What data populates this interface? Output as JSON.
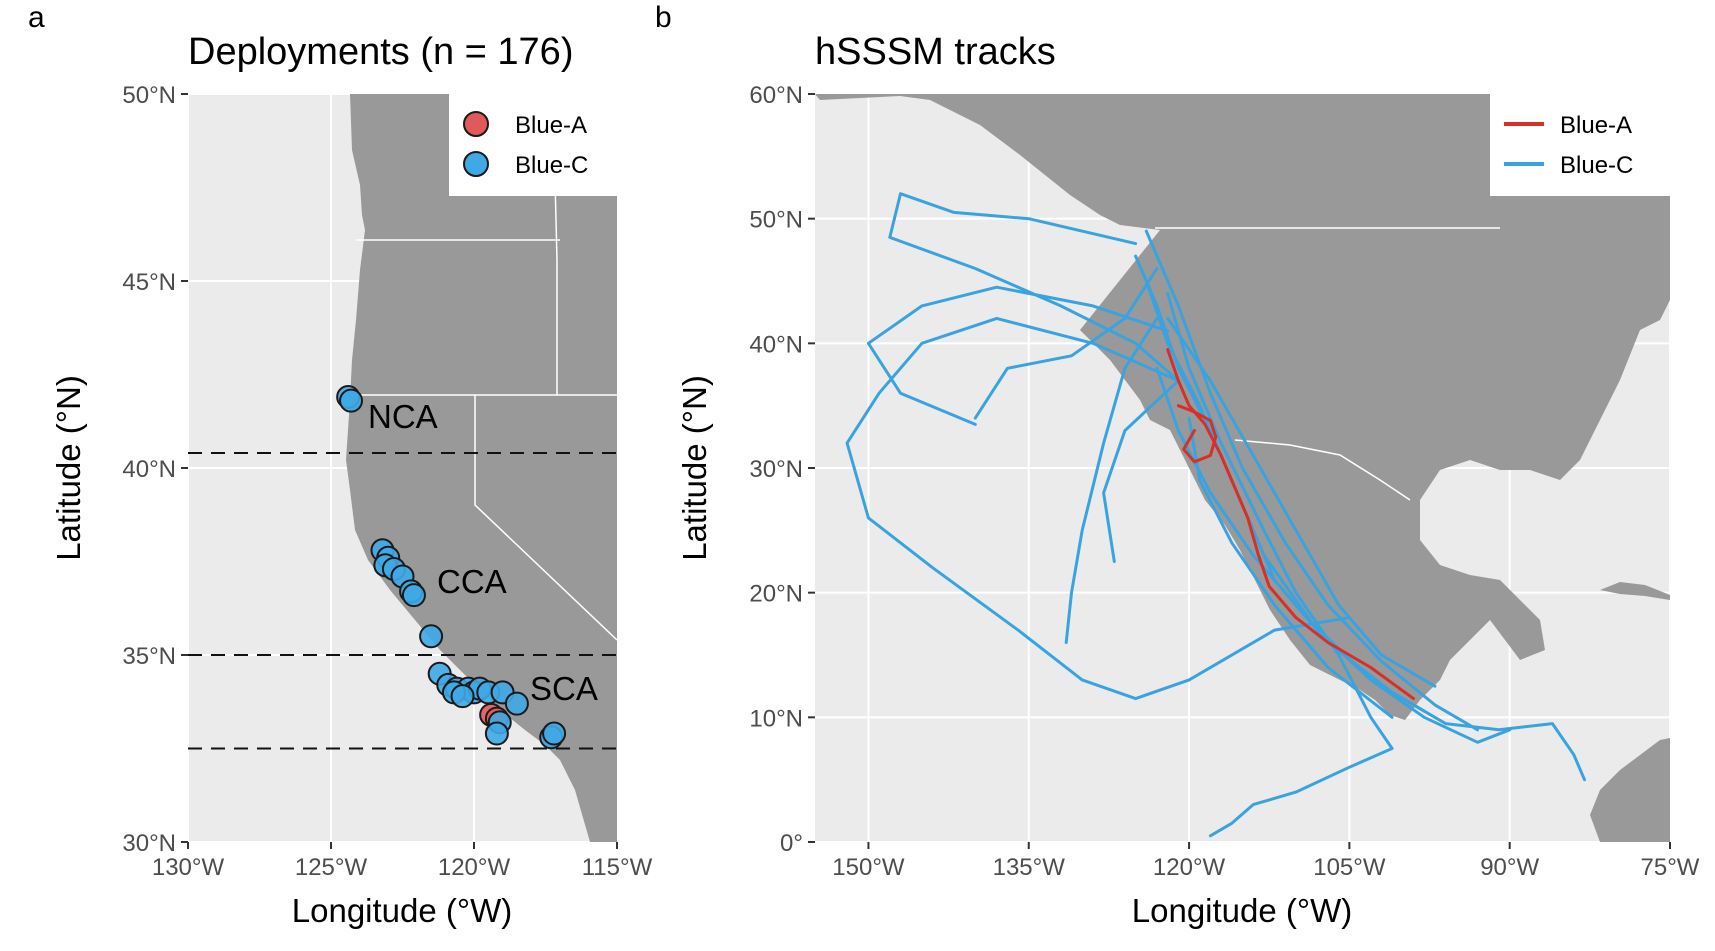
{
  "colors": {
    "ocean": "#ebebeb",
    "land": "#999999",
    "grid": "#ffffff",
    "blue_a": "#e05a5a",
    "blue_a_track": "#d73027",
    "blue_c": "#3fa9e6",
    "blue_c_track": "#39a3e0"
  },
  "panel_a": {
    "letter": "a",
    "title": "Deployments (n = 176)",
    "xlabel": "Longitude (°W)",
    "ylabel": "Latitude (°N)",
    "x_ticks": [
      "130°W",
      "125°W",
      "120°W",
      "115°W"
    ],
    "y_ticks": [
      "30°N",
      "35°N",
      "40°N",
      "45°N",
      "50°N"
    ],
    "regions": [
      "NCA",
      "CCA",
      "SCA"
    ],
    "legend": [
      "Blue-A",
      "Blue-C"
    ]
  },
  "panel_b": {
    "letter": "b",
    "title": "hSSSM tracks",
    "xlabel": "Longitude (°W)",
    "ylabel": "Latitude (°N)",
    "x_ticks": [
      "150°W",
      "135°W",
      "120°W",
      "105°W",
      "90°W",
      "75°W"
    ],
    "y_ticks": [
      "0°",
      "10°N",
      "20°N",
      "30°N",
      "40°N",
      "50°N",
      "60°N"
    ],
    "legend": [
      "Blue-A",
      "Blue-C"
    ]
  },
  "chart_data": [
    {
      "type": "scatter",
      "title": "Deployments (n = 176)",
      "xlabel": "Longitude (°W)",
      "ylabel": "Latitude (°N)",
      "xlim": [
        -130,
        -115
      ],
      "ylim": [
        30,
        50
      ],
      "region_boundaries_lat": [
        40.4,
        35.0,
        32.5
      ],
      "series": [
        {
          "name": "Blue-A",
          "points": [
            [
              -119.4,
              33.4
            ],
            [
              -119.2,
              33.3
            ]
          ]
        },
        {
          "name": "Blue-C",
          "points": [
            [
              -124.4,
              41.9
            ],
            [
              -124.3,
              41.8
            ],
            [
              -123.2,
              37.8
            ],
            [
              -123.0,
              37.6
            ],
            [
              -123.1,
              37.4
            ],
            [
              -122.8,
              37.3
            ],
            [
              -122.5,
              37.1
            ],
            [
              -122.2,
              36.7
            ],
            [
              -122.1,
              36.6
            ],
            [
              -121.5,
              35.5
            ],
            [
              -121.2,
              34.5
            ],
            [
              -120.9,
              34.2
            ],
            [
              -120.6,
              34.1
            ],
            [
              -120.2,
              34.1
            ],
            [
              -120.0,
              34.0
            ],
            [
              -119.8,
              34.1
            ],
            [
              -120.7,
              34.0
            ],
            [
              -120.4,
              33.9
            ],
            [
              -119.5,
              34.0
            ],
            [
              -119.0,
              34.0
            ],
            [
              -118.5,
              33.7
            ],
            [
              -119.1,
              33.2
            ],
            [
              -119.2,
              32.9
            ],
            [
              -117.3,
              32.8
            ],
            [
              -117.2,
              32.9
            ]
          ]
        }
      ]
    },
    {
      "type": "line",
      "title": "hSSSM tracks",
      "xlabel": "Longitude (°W)",
      "ylabel": "Latitude (°N)",
      "xlim": [
        -155,
        -75
      ],
      "ylim": [
        0,
        60
      ],
      "series": [
        {
          "name": "Blue-A",
          "tracks": [
            [
              [
                -122,
                39.5
              ],
              [
                -121,
                37
              ],
              [
                -120,
                35
              ],
              [
                -118.5,
                33.5
              ],
              [
                -117,
                31
              ],
              [
                -116,
                29
              ],
              [
                -114.5,
                26
              ],
              [
                -113.5,
                23
              ],
              [
                -112.5,
                20.5
              ],
              [
                -110,
                18
              ],
              [
                -107,
                16
              ],
              [
                -103,
                14
              ],
              [
                -99,
                11.5
              ]
            ],
            [
              [
                -121,
                35
              ],
              [
                -119.5,
                34.5
              ],
              [
                -118,
                33.8
              ],
              [
                -117.5,
                32.5
              ],
              [
                -118,
                31
              ],
              [
                -119.5,
                30.5
              ],
              [
                -120.5,
                31.5
              ],
              [
                -119.5,
                33
              ]
            ]
          ]
        },
        {
          "name": "Blue-C",
          "tracks": [
            [
              [
                -122,
                41
              ],
              [
                -129,
                43
              ],
              [
                -138,
                44.5
              ],
              [
                -145,
                43
              ],
              [
                -150,
                40
              ],
              [
                -147,
                36
              ],
              [
                -140,
                33.5
              ]
            ],
            [
              [
                -125,
                48
              ],
              [
                -135,
                50
              ],
              [
                -142,
                50.5
              ],
              [
                -147,
                52
              ],
              [
                -148,
                48.5
              ],
              [
                -140,
                46
              ],
              [
                -132,
                43
              ],
              [
                -125,
                40
              ],
              [
                -121,
                37
              ]
            ],
            [
              [
                -121,
                37
              ],
              [
                -129,
                40
              ],
              [
                -138,
                42
              ],
              [
                -145,
                40
              ],
              [
                -149,
                36
              ],
              [
                -152,
                32
              ],
              [
                -150,
                26
              ],
              [
                -144,
                22
              ],
              [
                -136,
                17
              ],
              [
                -130,
                13
              ],
              [
                -125,
                11.5
              ],
              [
                -120,
                13
              ],
              [
                -112,
                17
              ],
              [
                -105,
                18
              ]
            ],
            [
              [
                -123,
                42
              ],
              [
                -126,
                38
              ],
              [
                -128,
                32
              ],
              [
                -130,
                25
              ],
              [
                -131,
                20
              ],
              [
                -131.5,
                16
              ]
            ],
            [
              [
                -121,
                37
              ],
              [
                -126,
                33
              ],
              [
                -128,
                28
              ],
              [
                -127,
                22.5
              ]
            ],
            [
              [
                -125,
                47
              ],
              [
                -123,
                43
              ],
              [
                -121,
                38
              ],
              [
                -118,
                33
              ],
              [
                -115,
                27
              ],
              [
                -112,
                21
              ],
              [
                -107,
                16
              ],
              [
                -101,
                12
              ],
              [
                -96,
                9.5
              ],
              [
                -91,
                9
              ],
              [
                -86,
                9.5
              ],
              [
                -84,
                7
              ],
              [
                -83,
                5
              ]
            ],
            [
              [
                -124,
                45
              ],
              [
                -122,
                40
              ],
              [
                -119,
                35
              ],
              [
                -116,
                29
              ],
              [
                -113,
                23
              ],
              [
                -108,
                17
              ],
              [
                -103,
                13
              ],
              [
                -98,
                10
              ],
              [
                -93,
                8
              ],
              [
                -90,
                9
              ]
            ],
            [
              [
                -122,
                44
              ],
              [
                -120,
                38
              ],
              [
                -117,
                32
              ],
              [
                -113,
                25
              ],
              [
                -110,
                20
              ],
              [
                -106,
                15
              ],
              [
                -103,
                10
              ],
              [
                -101,
                7.5
              ],
              [
                -105,
                6
              ],
              [
                -110,
                4
              ],
              [
                -114,
                3
              ],
              [
                -116,
                1.5
              ],
              [
                -118,
                0.5
              ]
            ],
            [
              [
                -124,
                49
              ],
              [
                -121,
                43
              ],
              [
                -118,
                36
              ],
              [
                -115,
                30
              ],
              [
                -111,
                24
              ],
              [
                -107,
                19
              ],
              [
                -102,
                14.5
              ],
              [
                -97,
                11
              ],
              [
                -93,
                9
              ]
            ],
            [
              [
                -123,
                46
              ],
              [
                -126,
                42
              ],
              [
                -131,
                39
              ],
              [
                -137,
                38
              ],
              [
                -140,
                34
              ]
            ],
            [
              [
                -122,
                42
              ],
              [
                -118,
                37
              ],
              [
                -114,
                31
              ],
              [
                -110,
                25
              ],
              [
                -106,
                19
              ],
              [
                -102,
                15
              ],
              [
                -97,
                12.5
              ]
            ],
            [
              [
                -123,
                38
              ],
              [
                -121,
                33
              ],
              [
                -118,
                28
              ],
              [
                -114,
                23
              ],
              [
                -109,
                18
              ],
              [
                -103,
                13
              ],
              [
                -98,
                10.5
              ]
            ],
            [
              [
                -120,
                34
              ],
              [
                -119,
                29
              ],
              [
                -116,
                24
              ],
              [
                -112,
                19
              ],
              [
                -107,
                14
              ],
              [
                -101,
                10
              ]
            ]
          ]
        }
      ]
    }
  ]
}
